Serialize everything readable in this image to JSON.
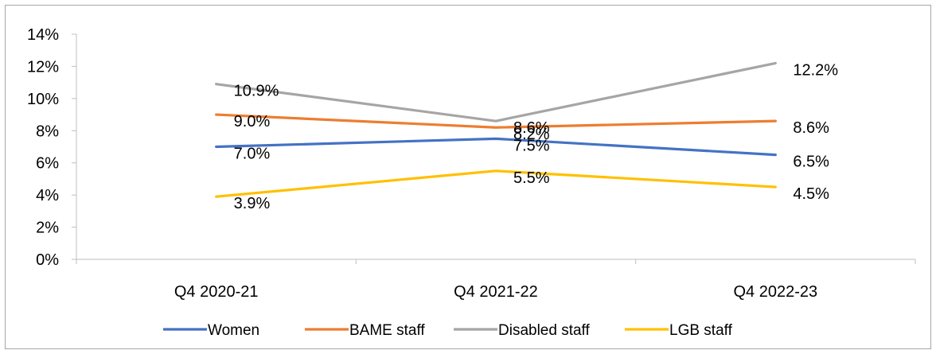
{
  "chart_data": {
    "type": "line",
    "title": "",
    "xlabel": "",
    "ylabel": "",
    "categories": [
      "Q4 2020-21",
      "Q4 2021-22",
      "Q4 2022-23"
    ],
    "ylim": [
      0,
      14
    ],
    "yticks": [
      0,
      2,
      4,
      6,
      8,
      10,
      12,
      14
    ],
    "ytick_labels": [
      "0%",
      "2%",
      "4%",
      "6%",
      "8%",
      "10%",
      "12%",
      "14%"
    ],
    "grid": false,
    "legend_position": "bottom",
    "series": [
      {
        "name": "Women",
        "color": "#4472C4",
        "values": [
          7.0,
          7.5,
          6.5
        ],
        "labels": [
          "7.0%",
          "7.5%",
          "6.5%"
        ]
      },
      {
        "name": "BAME staff",
        "color": "#ED7D31",
        "values": [
          9.0,
          8.2,
          8.6
        ],
        "labels": [
          "9.0%",
          "8.2%",
          "8.6%"
        ]
      },
      {
        "name": "Disabled staff",
        "color": "#A5A5A5",
        "values": [
          10.9,
          8.6,
          12.2
        ],
        "labels": [
          "10.9%",
          "8.6%",
          "12.2%"
        ]
      },
      {
        "name": "LGB staff",
        "color": "#FFC000",
        "values": [
          3.9,
          5.5,
          4.5
        ],
        "labels": [
          "3.9%",
          "5.5%",
          "4.5%"
        ]
      }
    ]
  }
}
